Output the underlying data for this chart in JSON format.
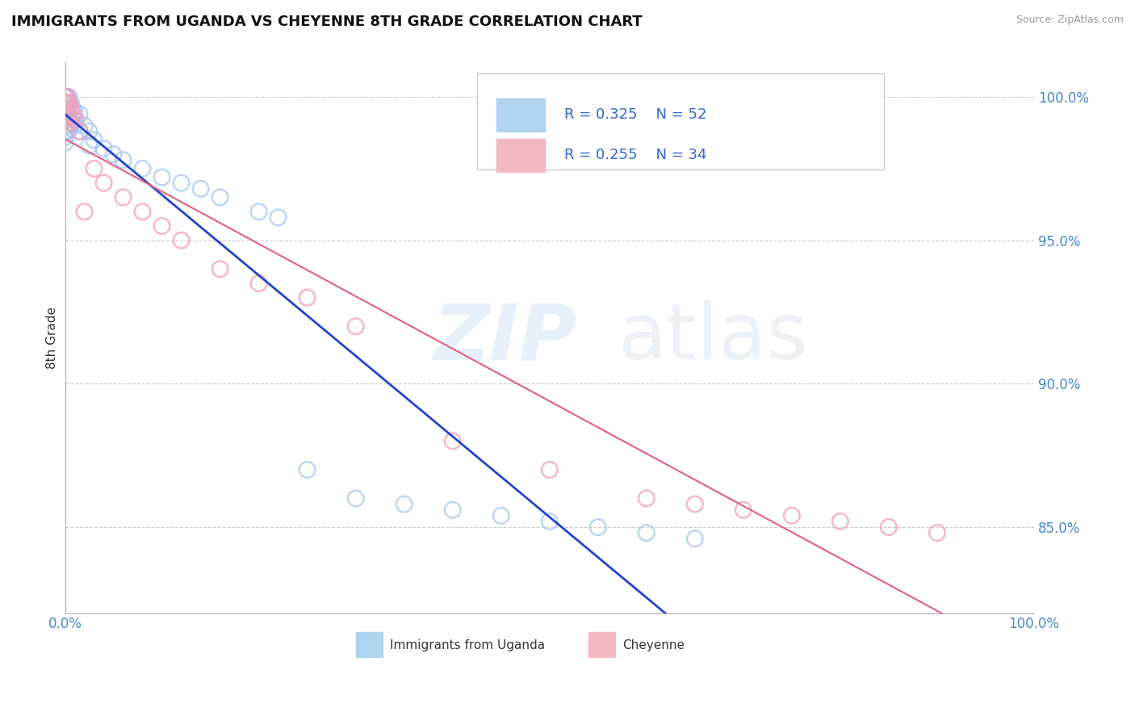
{
  "title": "IMMIGRANTS FROM UGANDA VS CHEYENNE 8TH GRADE CORRELATION CHART",
  "source": "Source: ZipAtlas.com",
  "ylabel": "8th Grade",
  "legend_text_blue": "R = 0.325    N = 52",
  "legend_text_pink": "R = 0.255    N = 34",
  "legend_label_blue": "Immigrants from Uganda",
  "legend_label_pink": "Cheyenne",
  "blue_color": "#A8C8F0",
  "pink_color": "#F0A0B8",
  "trendline_blue": "#2244CC",
  "trendline_pink": "#E06080",
  "background_color": "#FFFFFF",
  "blue_scatter": {
    "x": [
      0.0,
      0.0,
      0.0,
      0.0,
      0.0,
      0.0,
      0.0,
      0.0,
      0.0,
      0.0,
      0.002,
      0.002,
      0.002,
      0.002,
      0.002,
      0.004,
      0.004,
      0.004,
      0.004,
      0.006,
      0.006,
      0.006,
      0.008,
      0.008,
      0.01,
      0.01,
      0.012,
      0.015,
      0.015,
      0.02,
      0.025,
      0.025,
      0.03,
      0.04,
      0.05,
      0.06,
      0.08,
      0.1,
      0.12,
      0.14,
      0.16,
      0.2,
      0.22,
      0.25,
      0.3,
      0.35,
      0.4,
      0.45,
      0.5,
      0.55,
      0.6,
      0.65
    ],
    "y": [
      1.0,
      1.0,
      0.998,
      0.996,
      0.994,
      0.992,
      0.99,
      0.988,
      0.986,
      0.984,
      1.0,
      0.998,
      0.996,
      0.992,
      0.988,
      1.0,
      0.997,
      0.993,
      0.988,
      0.998,
      0.995,
      0.99,
      0.996,
      0.991,
      0.995,
      0.99,
      0.992,
      0.994,
      0.988,
      0.99,
      0.988,
      0.983,
      0.985,
      0.982,
      0.98,
      0.978,
      0.975,
      0.972,
      0.97,
      0.968,
      0.965,
      0.96,
      0.958,
      0.87,
      0.86,
      0.858,
      0.856,
      0.854,
      0.852,
      0.85,
      0.848,
      0.846
    ]
  },
  "pink_scatter": {
    "x": [
      0.0,
      0.0,
      0.0,
      0.0,
      0.002,
      0.002,
      0.002,
      0.004,
      0.004,
      0.006,
      0.006,
      0.008,
      0.01,
      0.015,
      0.02,
      0.03,
      0.04,
      0.06,
      0.08,
      0.1,
      0.12,
      0.16,
      0.2,
      0.25,
      0.3,
      0.4,
      0.5,
      0.6,
      0.65,
      0.7,
      0.75,
      0.8,
      0.85,
      0.9
    ],
    "y": [
      1.0,
      0.998,
      0.996,
      0.992,
      1.0,
      0.997,
      0.993,
      0.998,
      0.994,
      0.996,
      0.991,
      0.994,
      0.992,
      0.988,
      0.96,
      0.975,
      0.97,
      0.965,
      0.96,
      0.955,
      0.95,
      0.94,
      0.935,
      0.93,
      0.92,
      0.88,
      0.87,
      0.86,
      0.858,
      0.856,
      0.854,
      0.852,
      0.85,
      0.848
    ]
  }
}
